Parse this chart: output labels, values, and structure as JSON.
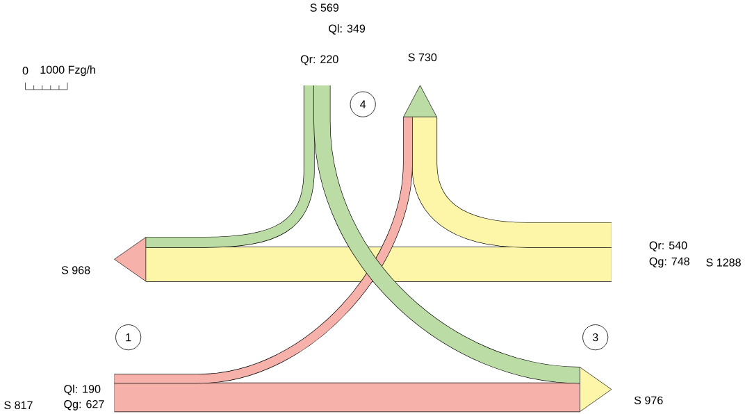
{
  "chart_data": {
    "type": "other",
    "value_labels": [
      "Ql: 349",
      "Qr: 220",
      "Qr: 540",
      "Qg: 748",
      "Ql: 190",
      "Qg: 627"
    ],
    "values": [
      349,
      220,
      540,
      748,
      190,
      627
    ],
    "colors": [
      "#bcdca5",
      "#bcdca5",
      "#fdf6a9",
      "#fdf6a9",
      "#f6b2aa",
      "#f6b2aa"
    ],
    "totals": [
      "S 569",
      "S 1288",
      "S 817",
      "S 968",
      "S 730",
      "S 976"
    ],
    "annotations": [
      "4",
      "1",
      "3",
      "0",
      "1000 Fzg/h"
    ]
  }
}
